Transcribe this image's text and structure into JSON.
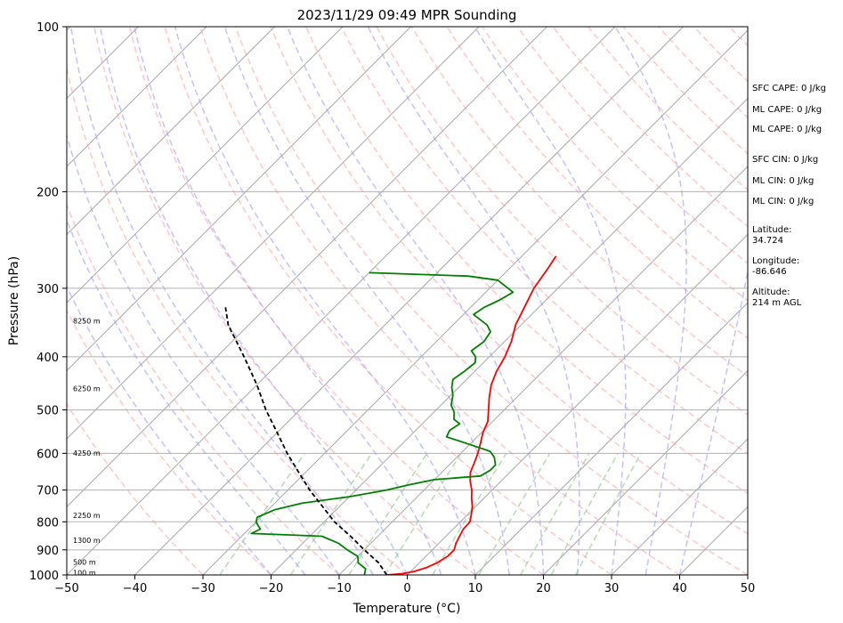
{
  "chart_data": {
    "type": "line",
    "title": "2023/11/29 09:49 MPR Sounding",
    "xlabel": "Temperature (°C)",
    "ylabel": "Pressure (hPa)",
    "xlim": [
      -50,
      50
    ],
    "ylim": [
      1000,
      100
    ],
    "y_scale": "log",
    "x_ticks": [
      "−50",
      "−40",
      "−30",
      "−20",
      "−10",
      "0",
      "10",
      "20",
      "30",
      "40",
      "50"
    ],
    "y_ticks": [
      "100",
      "200",
      "300",
      "400",
      "500",
      "600",
      "700",
      "800",
      "900",
      "1000"
    ],
    "grid": true,
    "colors": {
      "temperature": "#ff0000",
      "dewpoint": "#008000",
      "parcel": "#000000",
      "isotherm": "#aaaaaa",
      "dry_adiabat": "#ff9999",
      "moist_adiabat": "#9999ff",
      "mixing_ratio": "#99cc99"
    },
    "series": [
      {
        "key": "temperature",
        "points": [
          [
            1000,
            -3.0
          ],
          [
            995,
            -1.0
          ],
          [
            985,
            0.5
          ],
          [
            970,
            1.7
          ],
          [
            950,
            2.6
          ],
          [
            925,
            3.2
          ],
          [
            900,
            3.2
          ],
          [
            875,
            2.5
          ],
          [
            850,
            2.0
          ],
          [
            825,
            1.5
          ],
          [
            800,
            1.4
          ],
          [
            775,
            0.5
          ],
          [
            750,
            -0.5
          ],
          [
            725,
            -1.8
          ],
          [
            700,
            -3.0
          ],
          [
            675,
            -4.5
          ],
          [
            650,
            -5.8
          ],
          [
            625,
            -6.6
          ],
          [
            600,
            -7.5
          ],
          [
            575,
            -8.6
          ],
          [
            550,
            -9.8
          ],
          [
            525,
            -10.7
          ],
          [
            500,
            -12.3
          ],
          [
            475,
            -14.0
          ],
          [
            450,
            -15.6
          ],
          [
            425,
            -16.8
          ],
          [
            400,
            -17.7
          ],
          [
            375,
            -19.0
          ],
          [
            350,
            -20.8
          ],
          [
            325,
            -22.1
          ],
          [
            300,
            -23.5
          ],
          [
            275,
            -24.4
          ],
          [
            262,
            -25.0
          ]
        ]
      },
      {
        "key": "dewpoint",
        "points": [
          [
            1000,
            -6.3
          ],
          [
            975,
            -7.0
          ],
          [
            950,
            -9.0
          ],
          [
            925,
            -10.0
          ],
          [
            900,
            -12.5
          ],
          [
            875,
            -14.8
          ],
          [
            850,
            -18.2
          ],
          [
            840,
            -29.0
          ],
          [
            825,
            -28.3
          ],
          [
            815,
            -29.0
          ],
          [
            800,
            -30.0
          ],
          [
            785,
            -30.5
          ],
          [
            760,
            -29.0
          ],
          [
            740,
            -26.0
          ],
          [
            720,
            -20.0
          ],
          [
            700,
            -15.5
          ],
          [
            685,
            -13.0
          ],
          [
            670,
            -10.0
          ],
          [
            660,
            -3.8
          ],
          [
            645,
            -3.2
          ],
          [
            630,
            -3.2
          ],
          [
            610,
            -4.5
          ],
          [
            595,
            -6.0
          ],
          [
            580,
            -9.5
          ],
          [
            560,
            -14.5
          ],
          [
            545,
            -15.0
          ],
          [
            530,
            -14.5
          ],
          [
            520,
            -16.0
          ],
          [
            505,
            -17.0
          ],
          [
            490,
            -18.5
          ],
          [
            470,
            -19.7
          ],
          [
            455,
            -21.0
          ],
          [
            440,
            -22.0
          ],
          [
            425,
            -21.5
          ],
          [
            410,
            -21.2
          ],
          [
            400,
            -22.0
          ],
          [
            390,
            -23.5
          ],
          [
            375,
            -23.0
          ],
          [
            360,
            -23.5
          ],
          [
            350,
            -25.0
          ],
          [
            335,
            -28.5
          ],
          [
            325,
            -28.0
          ],
          [
            315,
            -26.8
          ],
          [
            305,
            -26.0
          ],
          [
            290,
            -30.0
          ],
          [
            285,
            -35.0
          ],
          [
            281,
            -50.0
          ]
        ]
      },
      {
        "key": "parcel",
        "points": [
          [
            1000,
            -3.0
          ],
          [
            950,
            -6.0
          ],
          [
            900,
            -10.0
          ],
          [
            850,
            -14.0
          ],
          [
            800,
            -18.5
          ],
          [
            750,
            -22.5
          ],
          [
            700,
            -26.8
          ],
          [
            650,
            -31.0
          ],
          [
            600,
            -35.5
          ],
          [
            550,
            -40.0
          ],
          [
            500,
            -45.0
          ],
          [
            450,
            -50.0
          ],
          [
            400,
            -56.0
          ],
          [
            350,
            -63.0
          ],
          [
            325,
            -66.0
          ]
        ]
      }
    ],
    "altitude_labels": [
      {
        "label": "100 m",
        "p": 990
      },
      {
        "label": "500 m",
        "p": 947
      },
      {
        "label": "1300 m",
        "p": 864
      },
      {
        "label": "2250 m",
        "p": 778
      },
      {
        "label": "4250 m",
        "p": 599
      },
      {
        "label": "6250 m",
        "p": 457
      },
      {
        "label": "8250 m",
        "p": 344
      }
    ]
  },
  "side_panel": {
    "sfc_cape": "SFC CAPE: 0 J/kg",
    "ml_cape_1": "ML CAPE: 0 J/kg",
    "ml_cape_2": "ML CAPE: 0 J/kg",
    "sfc_cin": "SFC CIN: 0 J/kg",
    "ml_cin_1": "ML CIN: 0 J/kg",
    "ml_cin_2": "ML CIN: 0 J/kg",
    "latitude_label": "Latitude:",
    "latitude_value": "34.724",
    "longitude_label": "Longitude:",
    "longitude_value": "-86.646",
    "altitude_label": "Altitude:",
    "altitude_value": "214 m AGL"
  }
}
